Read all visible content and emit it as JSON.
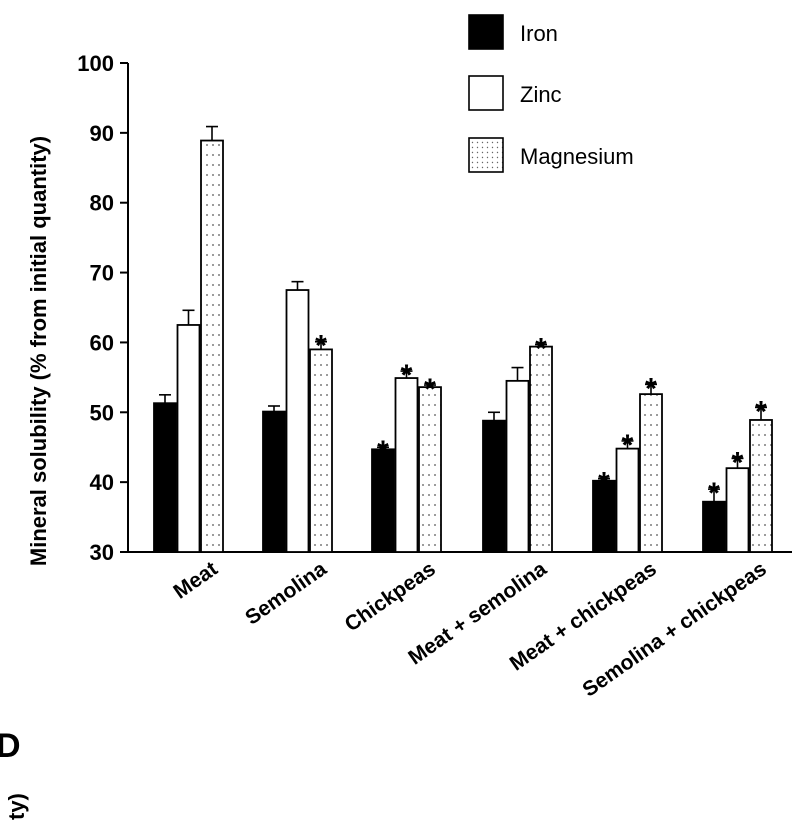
{
  "chart_data": {
    "type": "bar",
    "ylabel": "Mineral solubility (% from initial quantity)",
    "ylim": [
      30,
      100
    ],
    "yticks": [
      30,
      40,
      50,
      60,
      70,
      80,
      90,
      100
    ],
    "categories": [
      "Meat",
      "Semolina",
      "Chickpeas",
      "Meat + semolina",
      "Meat + chickpeas",
      "Semolina + chickpeas"
    ],
    "series": [
      {
        "name": "Iron",
        "color": "#000000",
        "pattern": "solid",
        "values": [
          51.3,
          50.1,
          44.7,
          48.8,
          40.2,
          37.2
        ],
        "errors": [
          1.2,
          0.8,
          0.3,
          1.2,
          0.3,
          1.8
        ],
        "significant": [
          false,
          false,
          true,
          false,
          true,
          true
        ]
      },
      {
        "name": "Zinc",
        "color": "#ffffff",
        "pattern": "open",
        "values": [
          62.5,
          67.5,
          54.9,
          54.5,
          44.8,
          42.0
        ],
        "errors": [
          2.1,
          1.2,
          1.0,
          1.9,
          1.1,
          1.4
        ],
        "significant": [
          false,
          false,
          true,
          false,
          true,
          true
        ]
      },
      {
        "name": "Magnesium",
        "color": "#ffffff",
        "pattern": "dotted",
        "values": [
          88.9,
          59.0,
          53.6,
          59.4,
          52.6,
          48.9
        ],
        "errors": [
          2.0,
          1.1,
          0.3,
          0.3,
          1.4,
          1.8
        ],
        "significant": [
          false,
          true,
          true,
          true,
          true,
          true
        ]
      }
    ],
    "significance_marker": "*",
    "legend_position": "top-right",
    "grid": false
  },
  "fragments": {
    "panel_letter": "D",
    "axis_label_tail": "ty)"
  }
}
